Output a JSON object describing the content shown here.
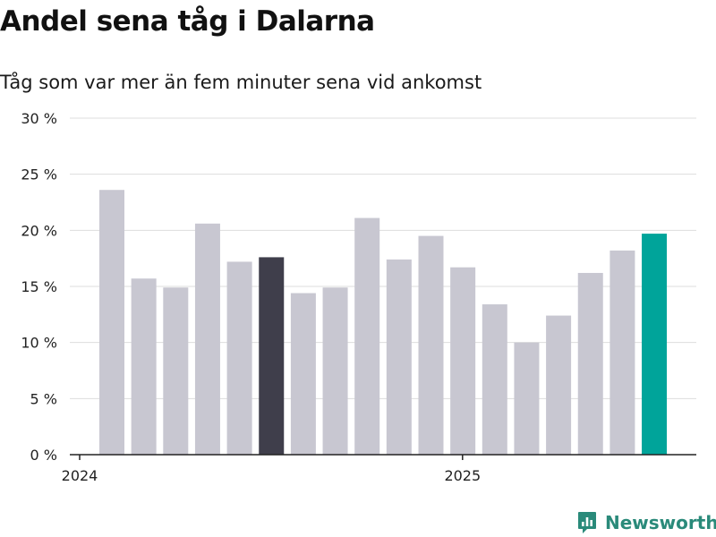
{
  "title": "Andel sena tåg i Dalarna",
  "subtitle": "Tåg som var mer än fem minuter sena vid ankomst",
  "brand": {
    "name": "Newsworthy",
    "icon": "newsworthy-logo-icon"
  },
  "chart_data": {
    "type": "bar",
    "title": "Andel sena tåg i Dalarna",
    "subtitle": "Tåg som var mer än fem minuter sena vid ankomst",
    "xlabel": "",
    "ylabel": "",
    "ylim": [
      0,
      30
    ],
    "y_ticks": [
      0,
      5,
      10,
      15,
      20,
      25,
      30
    ],
    "y_tick_labels": [
      "0 %",
      "5 %",
      "10 %",
      "15 %",
      "20 %",
      "25 %",
      "30 %"
    ],
    "x_tick_labels": [
      {
        "label": "2024",
        "index": 0
      },
      {
        "label": "2025",
        "index": 12
      }
    ],
    "grid": true,
    "values": [
      23.6,
      15.7,
      14.9,
      20.6,
      17.2,
      17.6,
      14.4,
      14.9,
      21.1,
      17.4,
      19.5,
      16.7,
      13.4,
      10.0,
      12.4,
      16.2,
      18.2,
      19.7
    ],
    "colors": {
      "default": "#c8c7d1",
      "highlight": "#3f3e4b",
      "latest": "#00a49a",
      "grid": "#dddddd",
      "axis": "#222222"
    },
    "highlight_index": 5,
    "latest_index": 17
  }
}
